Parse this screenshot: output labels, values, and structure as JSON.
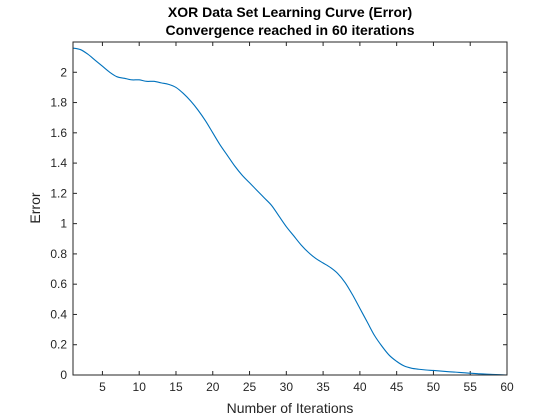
{
  "chart_data": {
    "type": "line",
    "title": "XOR Data Set Learning Curve (Error)",
    "subtitle": "Convergence reached in 60 iterations",
    "xlabel": "Number of Iterations",
    "ylabel": "Error",
    "xlim": [
      1,
      60
    ],
    "ylim": [
      0,
      2.2
    ],
    "xticks": [
      5,
      10,
      15,
      20,
      25,
      30,
      35,
      40,
      45,
      50,
      55,
      60
    ],
    "yticks": [
      0,
      0.2,
      0.4,
      0.6,
      0.8,
      1,
      1.2,
      1.4,
      1.6,
      1.8,
      2
    ],
    "ytick_labels": [
      "0",
      "0.2",
      "0.4",
      "0.6",
      "0.8",
      "1",
      "1.2",
      "1.4",
      "1.6",
      "1.8",
      "2"
    ],
    "grid": false,
    "line_color": "#0072BD",
    "series": [
      {
        "x": [
          1,
          2,
          3,
          4,
          5,
          6,
          7,
          8,
          9,
          10,
          11,
          12,
          13,
          14,
          15,
          16,
          17,
          18,
          19,
          20,
          21,
          22,
          23,
          24,
          25,
          26,
          27,
          28,
          29,
          30,
          31,
          32,
          33,
          34,
          35,
          36,
          37,
          38,
          39,
          40,
          41,
          42,
          43,
          44,
          45,
          46,
          47,
          48,
          49,
          50,
          51,
          52,
          53,
          54,
          55,
          56,
          57,
          58,
          59,
          60
        ],
        "y": [
          2.16,
          2.15,
          2.12,
          2.08,
          2.04,
          2.0,
          1.97,
          1.96,
          1.95,
          1.95,
          1.94,
          1.94,
          1.93,
          1.92,
          1.9,
          1.86,
          1.81,
          1.75,
          1.68,
          1.6,
          1.52,
          1.45,
          1.38,
          1.32,
          1.27,
          1.22,
          1.17,
          1.12,
          1.05,
          0.98,
          0.92,
          0.86,
          0.81,
          0.77,
          0.74,
          0.71,
          0.67,
          0.61,
          0.53,
          0.44,
          0.35,
          0.26,
          0.19,
          0.13,
          0.09,
          0.06,
          0.045,
          0.038,
          0.033,
          0.03,
          0.026,
          0.022,
          0.019,
          0.015,
          0.012,
          0.009,
          0.006,
          0.004,
          0.002,
          0.0
        ]
      }
    ]
  }
}
